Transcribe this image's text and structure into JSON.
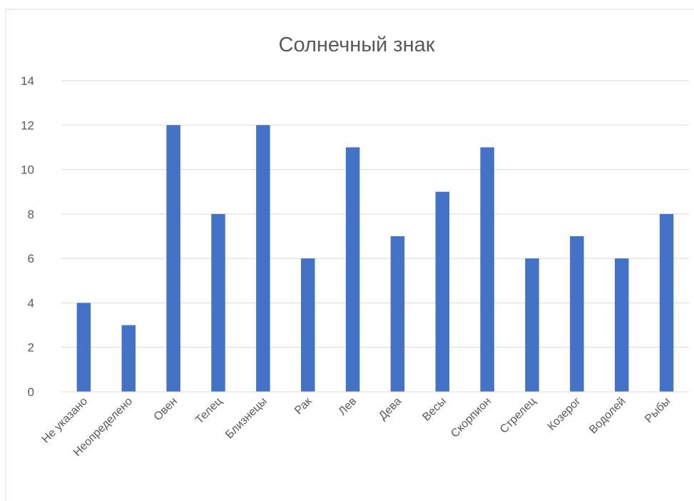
{
  "chart_data": {
    "type": "bar",
    "title": "Солнечный знак",
    "xlabel": "",
    "ylabel": "",
    "categories": [
      "Не указано",
      "Неопределено",
      "Овен",
      "Телец",
      "Близнецы",
      "Рак",
      "Лев",
      "Дева",
      "Весы",
      "Скорпион",
      "Стрелец",
      "Козерог",
      "Водолей",
      "Рыбы"
    ],
    "values": [
      4,
      3,
      12,
      8,
      12,
      6,
      11,
      7,
      9,
      11,
      6,
      7,
      6,
      8
    ],
    "ylim": [
      0,
      14
    ],
    "yticks": [
      "0",
      "2",
      "4",
      "6",
      "8",
      "10",
      "12",
      "14"
    ],
    "grid": true,
    "legend": "none",
    "bar_color": "#4472c4"
  }
}
